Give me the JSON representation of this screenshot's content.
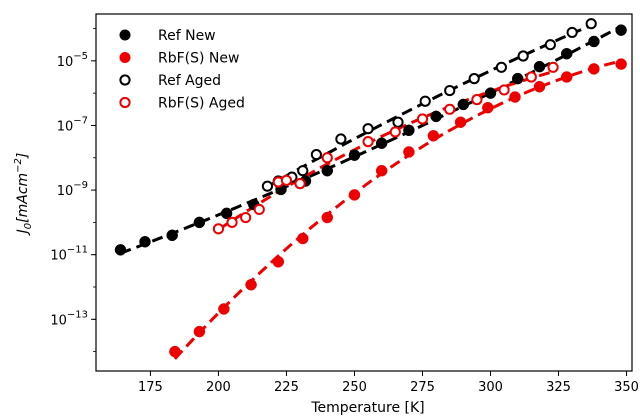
{
  "chart_data": {
    "type": "scatter",
    "title": "",
    "xlabel": "Temperature [K]",
    "ylabel_main": "J",
    "ylabel_sub": "0",
    "ylabel_bracket": "[mAcm",
    "ylabel_exp": "−2",
    "ylabel_close": "]",
    "xlim": [
      155,
      352
    ],
    "ylim_log10": [
      -14.6,
      -3.55
    ],
    "y_scale": "log",
    "grid": false,
    "legend_position": "top-left",
    "x_ticks": [
      {
        "value": 175,
        "label": "175"
      },
      {
        "value": 200,
        "label": "200"
      },
      {
        "value": 225,
        "label": "225"
      },
      {
        "value": 250,
        "label": "250"
      },
      {
        "value": 275,
        "label": "275"
      },
      {
        "value": 300,
        "label": "300"
      },
      {
        "value": 325,
        "label": "325"
      },
      {
        "value": 350,
        "label": "350"
      }
    ],
    "y_ticks": [
      {
        "exp": -13,
        "base": "10",
        "sup": "−13"
      },
      {
        "exp": -11,
        "base": "10",
        "sup": "−11"
      },
      {
        "exp": -9,
        "base": "10",
        "sup": "−9"
      },
      {
        "exp": -7,
        "base": "10",
        "sup": "−7"
      },
      {
        "exp": -5,
        "base": "10",
        "sup": "−5"
      }
    ],
    "series": [
      {
        "name": "Ref New",
        "color": "#000000",
        "filled": true,
        "log10_y_fit_line": true,
        "x": [
          164,
          173,
          183,
          193,
          203,
          213,
          223,
          232,
          240,
          250,
          260,
          270,
          280,
          290,
          300,
          310,
          318,
          328,
          338,
          348
        ],
        "log10_y": [
          -10.85,
          -10.6,
          -10.4,
          -10.0,
          -9.72,
          -9.45,
          -8.98,
          -8.72,
          -8.4,
          -7.92,
          -7.55,
          -7.15,
          -6.72,
          -6.35,
          -6.0,
          -5.55,
          -5.18,
          -4.78,
          -4.4,
          -4.05
        ]
      },
      {
        "name": "RbF(S) New",
        "color": "#ee0000",
        "filled": true,
        "log10_y_fit_line": true,
        "x": [
          184,
          193,
          202,
          212,
          222,
          231,
          240,
          250,
          260,
          270,
          279,
          289,
          299,
          309,
          318,
          328,
          338,
          348
        ],
        "log10_y": [
          -14.0,
          -13.38,
          -12.68,
          -11.93,
          -11.22,
          -10.5,
          -9.85,
          -9.15,
          -8.4,
          -7.82,
          -7.32,
          -6.9,
          -6.45,
          -6.12,
          -5.8,
          -5.5,
          -5.25,
          -5.1
        ]
      },
      {
        "name": "Ref Aged",
        "color": "#000000",
        "filled": false,
        "log10_y_fit_line": true,
        "x": [
          218,
          222,
          227,
          231,
          236,
          245,
          255,
          266,
          276,
          285,
          294,
          304,
          312,
          322,
          330,
          337
        ],
        "log10_y": [
          -8.88,
          -8.72,
          -8.6,
          -8.4,
          -7.9,
          -7.42,
          -7.1,
          -6.9,
          -6.25,
          -5.92,
          -5.55,
          -5.2,
          -4.85,
          -4.5,
          -4.12,
          -3.85
        ]
      },
      {
        "name": "RbF(S) Aged",
        "color": "#ee0000",
        "filled": false,
        "log10_y_fit_line": true,
        "x": [
          200,
          205,
          210,
          215,
          222,
          225,
          230,
          240,
          255,
          265,
          275,
          285,
          295,
          305,
          315,
          323
        ],
        "log10_y": [
          -10.2,
          -10.0,
          -9.85,
          -9.6,
          -8.75,
          -8.7,
          -8.8,
          -8.0,
          -7.5,
          -7.2,
          -6.8,
          -6.5,
          -6.2,
          -5.9,
          -5.5,
          -5.2
        ]
      }
    ]
  }
}
